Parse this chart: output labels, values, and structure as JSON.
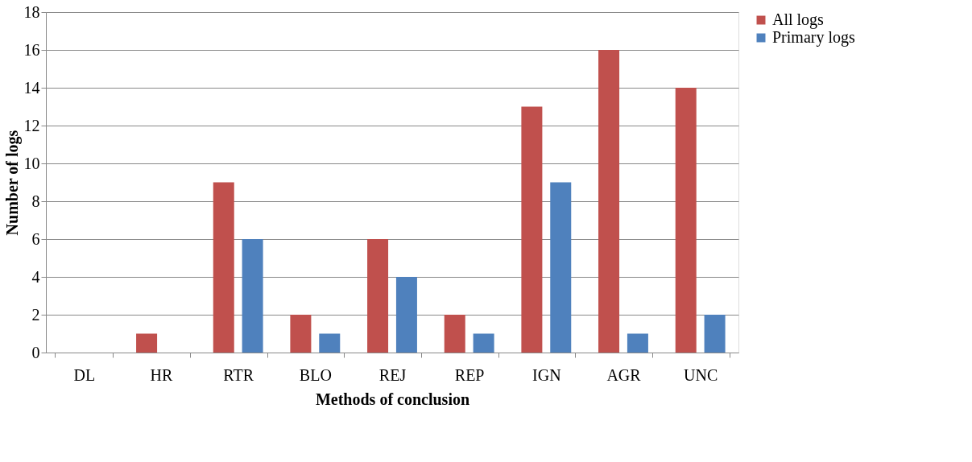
{
  "chart_data": {
    "type": "bar",
    "xlabel": "Methods of conclusion",
    "ylabel": "Number of logs",
    "categories": [
      "DL",
      "HR",
      "RTR",
      "BLO",
      "REJ",
      "REP",
      "IGN",
      "AGR",
      "UNC"
    ],
    "series": [
      {
        "name": "All logs",
        "color": "#c0504d",
        "values": [
          0,
          1,
          9,
          2,
          6,
          2,
          13,
          16,
          14
        ]
      },
      {
        "name": "Primary logs",
        "color": "#4f81bd",
        "values": [
          0,
          0,
          6,
          1,
          4,
          1,
          9,
          1,
          2
        ]
      }
    ],
    "ylim": [
      0,
      18
    ],
    "yticks": [
      0,
      2,
      4,
      6,
      8,
      10,
      12,
      14,
      16,
      18
    ],
    "grid": "y",
    "legend": "right"
  }
}
